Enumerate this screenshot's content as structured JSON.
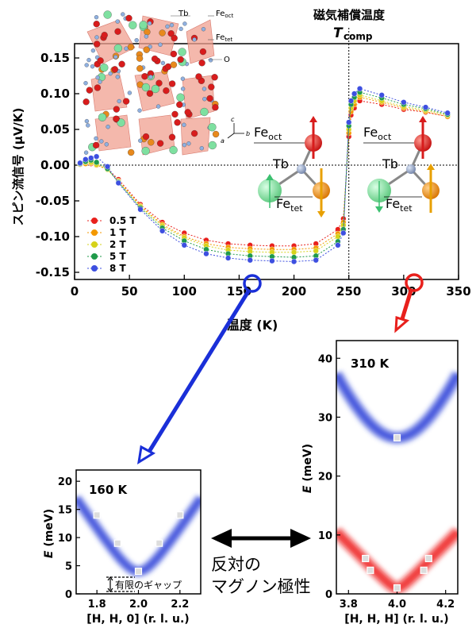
{
  "header": {
    "comp_label": "磁気補償温度",
    "tcomp_symbol": "T",
    "tcomp_sub": "comp"
  },
  "crystal_labels": {
    "tb": "Tb",
    "fe": "Fe",
    "oct": "oct",
    "tet": "tet",
    "o": "O",
    "axis_a": "a",
    "axis_b": "b",
    "axis_c": "c"
  },
  "spin_labels": {
    "fe": "Fe",
    "oct": "oct",
    "tet": "tet",
    "tb": "Tb"
  },
  "colors": {
    "s05": "#e8201c",
    "s1": "#f39800",
    "s2": "#d6d21a",
    "s5": "#1f9a4a",
    "s8": "#3d4fe0",
    "blue_arrow": "#1a2fd8",
    "red_arrow": "#e8201c",
    "band_blue": "#2a3fd8",
    "band_red": "#ee1c1c",
    "tb_atom": "#8fa0c0",
    "feoct_atom": "#d81c1c",
    "fetet_atom": "#e8891c",
    "green_atom": "#7ee0a0"
  },
  "bottom_text": {
    "line1": "反対の",
    "line2": "マグノン極性",
    "gap_label": "有限のギャップ"
  },
  "chart_data": [
    {
      "type": "line",
      "xlabel": "温度 (K)",
      "ylabel": "スピン流信号 (μV/K)",
      "xlim": [
        0,
        350
      ],
      "ylim": [
        -0.16,
        0.17
      ],
      "xticks": [
        0,
        50,
        100,
        150,
        200,
        250,
        300,
        350
      ],
      "yticks": [
        0.15,
        0.1,
        0.05,
        0.0,
        -0.05,
        -0.1,
        -0.15
      ],
      "ytick_labels": [
        "0.15",
        "0.10",
        "0.05",
        "0.00",
        "-0.05",
        "-0.10",
        "-0.15"
      ],
      "xtick_labels": [
        "0",
        "50",
        "100",
        "150",
        "200",
        "250",
        "300",
        "350"
      ],
      "vline_x": 250,
      "legend_placement": "lower-left",
      "series": [
        {
          "name": "0.5 T",
          "x": [
            5,
            10,
            15,
            20,
            30,
            40,
            60,
            80,
            100,
            120,
            140,
            160,
            180,
            200,
            220,
            240,
            245,
            250,
            252,
            255,
            260,
            280,
            300,
            320,
            340
          ],
          "y": [
            0.001,
            0.002,
            0.002,
            0.0,
            -0.005,
            -0.02,
            -0.055,
            -0.08,
            -0.095,
            -0.105,
            -0.11,
            -0.112,
            -0.113,
            -0.113,
            -0.11,
            -0.09,
            -0.075,
            0.04,
            0.07,
            0.08,
            0.09,
            0.085,
            0.078,
            0.074,
            0.068
          ]
        },
        {
          "name": "1 T",
          "x": [
            5,
            10,
            15,
            20,
            30,
            40,
            60,
            80,
            100,
            120,
            140,
            160,
            180,
            200,
            220,
            240,
            245,
            250,
            252,
            255,
            260,
            280,
            300,
            320,
            340
          ],
          "y": [
            0.001,
            0.002,
            0.003,
            0.0,
            -0.006,
            -0.022,
            -0.057,
            -0.083,
            -0.1,
            -0.11,
            -0.115,
            -0.117,
            -0.118,
            -0.118,
            -0.116,
            -0.096,
            -0.08,
            0.045,
            0.075,
            0.085,
            0.095,
            0.088,
            0.08,
            0.075,
            0.068
          ]
        },
        {
          "name": "2 T",
          "x": [
            5,
            10,
            15,
            20,
            30,
            40,
            60,
            80,
            100,
            120,
            140,
            160,
            180,
            200,
            220,
            240,
            245,
            250,
            252,
            255,
            260,
            280,
            300,
            320,
            340
          ],
          "y": [
            0.002,
            0.004,
            0.004,
            0.001,
            -0.006,
            -0.023,
            -0.058,
            -0.085,
            -0.102,
            -0.113,
            -0.119,
            -0.121,
            -0.122,
            -0.122,
            -0.12,
            -0.1,
            -0.084,
            0.05,
            0.08,
            0.09,
            0.098,
            0.09,
            0.082,
            0.077,
            0.07
          ]
        },
        {
          "name": "5 T",
          "x": [
            5,
            10,
            15,
            20,
            30,
            40,
            60,
            80,
            100,
            120,
            140,
            160,
            180,
            200,
            220,
            240,
            245,
            250,
            252,
            255,
            260,
            280,
            300,
            320,
            340
          ],
          "y": [
            0.002,
            0.005,
            0.007,
            0.004,
            -0.005,
            -0.024,
            -0.06,
            -0.088,
            -0.106,
            -0.118,
            -0.124,
            -0.127,
            -0.128,
            -0.129,
            -0.127,
            -0.107,
            -0.09,
            0.055,
            0.085,
            0.095,
            0.102,
            0.094,
            0.085,
            0.079,
            0.071
          ]
        },
        {
          "name": "8 T",
          "x": [
            5,
            10,
            15,
            20,
            30,
            40,
            60,
            80,
            100,
            120,
            140,
            160,
            180,
            200,
            220,
            240,
            245,
            250,
            252,
            255,
            260,
            280,
            300,
            320,
            340
          ],
          "y": [
            0.003,
            0.008,
            0.01,
            0.012,
            -0.002,
            -0.025,
            -0.062,
            -0.092,
            -0.112,
            -0.124,
            -0.13,
            -0.133,
            -0.134,
            -0.135,
            -0.133,
            -0.112,
            -0.095,
            0.06,
            0.09,
            0.1,
            0.107,
            0.098,
            0.088,
            0.081,
            0.073
          ]
        }
      ]
    },
    {
      "type": "heatmap",
      "title": "160 K",
      "xlabel": "[H, H, 0] (r. l. u.)",
      "ylabel": "E (meV)",
      "xlim": [
        1.7,
        2.3
      ],
      "ylim": [
        0,
        22
      ],
      "xticks": [
        1.8,
        2.0,
        2.2
      ],
      "xtick_labels": [
        "1.8",
        "2.0",
        "2.2"
      ],
      "yticks": [
        0,
        5,
        10,
        15,
        20
      ],
      "ytick_labels": [
        "0",
        "5",
        "10",
        "15",
        "20"
      ],
      "series": [
        {
          "name": "blue",
          "points": {
            "x": [
              1.8,
              1.9,
              2.0,
              2.1,
              2.2
            ],
            "y": [
              14,
              9,
              4,
              9,
              14
            ]
          }
        }
      ]
    },
    {
      "type": "heatmap",
      "title": "310 K",
      "xlabel": "[H, H, H] (r. l. u.)",
      "ylabel": "E (meV)",
      "xlim": [
        3.75,
        4.25
      ],
      "ylim": [
        0,
        43
      ],
      "xticks": [
        3.8,
        4.0,
        4.2
      ],
      "xtick_labels": [
        "3.8",
        "4.0",
        "4.2"
      ],
      "yticks": [
        0,
        10,
        20,
        30,
        40
      ],
      "ytick_labels": [
        "0",
        "10",
        "20",
        "30",
        "40"
      ],
      "series": [
        {
          "name": "blue",
          "points": {
            "x": [
              4.0
            ],
            "y": [
              26.5
            ]
          }
        },
        {
          "name": "red",
          "points": {
            "x": [
              3.87,
              3.89,
              4.0,
              4.11,
              4.13
            ],
            "y": [
              6,
              4,
              1,
              4,
              6
            ]
          }
        }
      ]
    }
  ]
}
